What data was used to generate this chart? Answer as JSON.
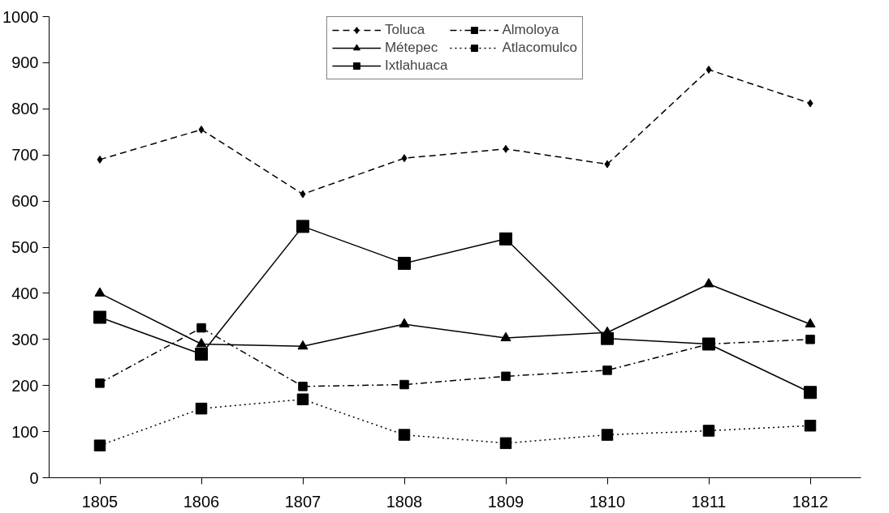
{
  "chart_data": {
    "type": "line",
    "categories": [
      "1805",
      "1806",
      "1807",
      "1808",
      "1809",
      "1810",
      "1811",
      "1812"
    ],
    "ylim": [
      0,
      1000
    ],
    "yticks": [
      0,
      100,
      200,
      300,
      400,
      500,
      600,
      700,
      800,
      900,
      1000
    ],
    "grid": false,
    "legend": "top",
    "series": [
      {
        "name": "Toluca",
        "color": "#000000",
        "marker": "diamond",
        "line_style": "dashed",
        "values": [
          690,
          755,
          615,
          693,
          713,
          680,
          885,
          812
        ]
      },
      {
        "name": "Almoloya",
        "color": "#000000",
        "marker": "square",
        "line_style": "dashdot",
        "values": [
          205,
          325,
          198,
          202,
          220,
          233,
          290,
          300
        ]
      },
      {
        "name": "Métepec",
        "color": "#000000",
        "marker": "triangle",
        "line_style": "solid",
        "values": [
          400,
          290,
          285,
          333,
          303,
          315,
          420,
          333
        ]
      },
      {
        "name": "Atlacomulco",
        "color": "#000000",
        "marker": "square",
        "line_style": "dotted",
        "values": [
          70,
          150,
          170,
          93,
          75,
          93,
          102,
          113
        ]
      },
      {
        "name": "Ixtlahuaca",
        "color": "#000000",
        "marker": "square",
        "line_style": "solid",
        "values": [
          348,
          268,
          545,
          465,
          518,
          302,
          290,
          185
        ]
      }
    ]
  }
}
